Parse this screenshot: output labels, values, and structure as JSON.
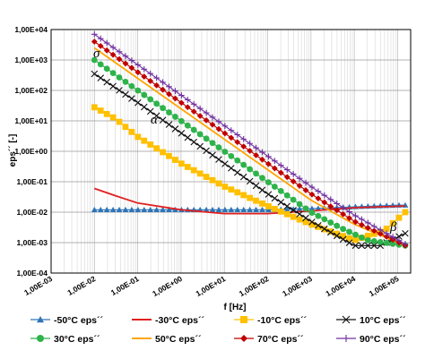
{
  "chart_data": {
    "type": "line",
    "title": "",
    "xlabel": "f [Hz]",
    "ylabel": "eps´´ [-]",
    "x_scale": "log",
    "y_scale": "log",
    "xlim": [
      0.001,
      200000
    ],
    "ylim": [
      0.0001,
      10000
    ],
    "grid": true,
    "legend_position": "bottom",
    "x_tick_labels": [
      "1,00E-03",
      "1,00E-02",
      "1,00E-01",
      "1,00E+00",
      "1,00E+01",
      "1,00E+02",
      "1,00E+03",
      "1,00E+04",
      "1,00E+05"
    ],
    "y_tick_labels": [
      "1,00E+04",
      "1,00E+03",
      "1,00E+02",
      "1,00E+01",
      "1,00E+00",
      "1,00E-01",
      "1,00E-02",
      "1,00E-03",
      "1,00E-04"
    ],
    "annotations": [
      "σ",
      "α",
      "β"
    ],
    "series": [
      {
        "name": "-50°C eps´´",
        "color": "#2e75b6",
        "marker": "triangle",
        "points": [
          [
            0.01,
            0.012
          ],
          [
            0.1,
            0.012
          ],
          [
            1,
            0.012
          ],
          [
            10,
            0.012
          ],
          [
            100,
            0.012
          ],
          [
            1000,
            0.013
          ],
          [
            10000,
            0.015
          ],
          [
            100000,
            0.017
          ],
          [
            150000,
            0.017
          ]
        ]
      },
      {
        "name": "-30°C eps´´",
        "color": "#e02020",
        "marker": "dash",
        "points": [
          [
            0.01,
            0.06
          ],
          [
            0.03,
            0.035
          ],
          [
            0.1,
            0.02
          ],
          [
            1,
            0.012
          ],
          [
            10,
            0.009
          ],
          [
            100,
            0.009
          ],
          [
            1000,
            0.011
          ],
          [
            10000,
            0.014
          ],
          [
            150000,
            0.016
          ]
        ]
      },
      {
        "name": "-10°C eps´´",
        "color": "#ffc000",
        "marker": "square",
        "points": [
          [
            0.01,
            28
          ],
          [
            0.03,
            12
          ],
          [
            0.1,
            3
          ],
          [
            1,
            0.4
          ],
          [
            10,
            0.07
          ],
          [
            100,
            0.016
          ],
          [
            1000,
            0.004
          ],
          [
            10000,
            0.0012
          ],
          [
            50000,
            0.0025
          ],
          [
            150000,
            0.01
          ]
        ]
      },
      {
        "name": "10°C eps´´",
        "color": "#111111",
        "marker": "x",
        "points": [
          [
            0.01,
            350
          ],
          [
            0.1,
            40
          ],
          [
            1,
            4
          ],
          [
            10,
            0.4
          ],
          [
            100,
            0.04
          ],
          [
            1000,
            0.005
          ],
          [
            10000,
            0.0008
          ],
          [
            40000,
            0.0008
          ],
          [
            150000,
            0.002
          ]
        ]
      },
      {
        "name": "30°C eps´´",
        "color": "#2db34a",
        "marker": "circle",
        "points": [
          [
            0.01,
            1000
          ],
          [
            0.1,
            100
          ],
          [
            1,
            10
          ],
          [
            10,
            1
          ],
          [
            100,
            0.1
          ],
          [
            1000,
            0.01
          ],
          [
            5000,
            0.003
          ],
          [
            20000,
            0.0012
          ],
          [
            150000,
            0.0008
          ]
        ]
      },
      {
        "name": "50°C eps´´",
        "color": "#ffa500",
        "marker": "line",
        "points": [
          [
            0.01,
            2500
          ],
          [
            0.1,
            250
          ],
          [
            1,
            25
          ],
          [
            10,
            2.5
          ],
          [
            100,
            0.25
          ],
          [
            1000,
            0.025
          ],
          [
            10000,
            0.004
          ],
          [
            150000,
            0.0008
          ]
        ]
      },
      {
        "name": "70°C eps´´",
        "color": "#c00000",
        "marker": "diamond",
        "points": [
          [
            0.01,
            4000
          ],
          [
            0.1,
            400
          ],
          [
            1,
            40
          ],
          [
            10,
            4
          ],
          [
            100,
            0.4
          ],
          [
            1000,
            0.04
          ],
          [
            10000,
            0.005
          ],
          [
            150000,
            0.0008
          ]
        ]
      },
      {
        "name": "90°C eps´´",
        "color": "#7030a0",
        "marker": "plus",
        "points": [
          [
            0.01,
            7000
          ],
          [
            0.1,
            700
          ],
          [
            1,
            70
          ],
          [
            10,
            7
          ],
          [
            100,
            0.7
          ],
          [
            1000,
            0.07
          ],
          [
            10000,
            0.008
          ],
          [
            150000,
            0.0009
          ]
        ]
      }
    ]
  }
}
